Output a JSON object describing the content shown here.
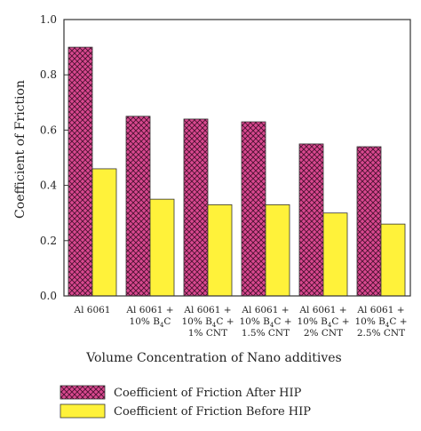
{
  "chart_data": {
    "type": "bar",
    "title": "",
    "xlabel": "Volume Concentration of Nano additives",
    "ylabel": "Coefficient of Friction",
    "ylim": [
      0,
      1.0
    ],
    "yticks": [
      "0.0",
      "0.2",
      "0.4",
      "0.6",
      "0.8",
      "1.0"
    ],
    "grid": false,
    "legend_position": "bottom",
    "categories": [
      "Al 6061",
      "Al 6061 + 10% B4C",
      "Al 6061 + 10% B4C + 1% CNT",
      "Al 6061 + 10% B4C + 1.5% CNT",
      "Al 6061 + 10% B4C + 2% CNT",
      "Al 6061 + 10% B4C + 2.5% CNT"
    ],
    "category_lines": [
      [
        "Al 6061"
      ],
      [
        "Al 6061 +",
        "10% B_4C"
      ],
      [
        "Al 6061 +",
        "10% B_4C +",
        "1% CNT"
      ],
      [
        "Al 6061 +",
        "10% B_4C +",
        "1.5% CNT"
      ],
      [
        "Al 6061 +",
        "10% B_4C +",
        "2% CNT"
      ],
      [
        "Al 6061 +",
        "10% B_4C +",
        "2.5% CNT"
      ]
    ],
    "series": [
      {
        "name": "Coefficient of Friction After HIP",
        "values": [
          0.9,
          0.65,
          0.64,
          0.63,
          0.55,
          0.54
        ],
        "color": "#d9488f",
        "pattern": "crosshatch"
      },
      {
        "name": "Coefficient of Friction Before HIP",
        "values": [
          0.46,
          0.35,
          0.33,
          0.33,
          0.3,
          0.26
        ],
        "color": "#fff23a",
        "pattern": "solid"
      }
    ]
  }
}
